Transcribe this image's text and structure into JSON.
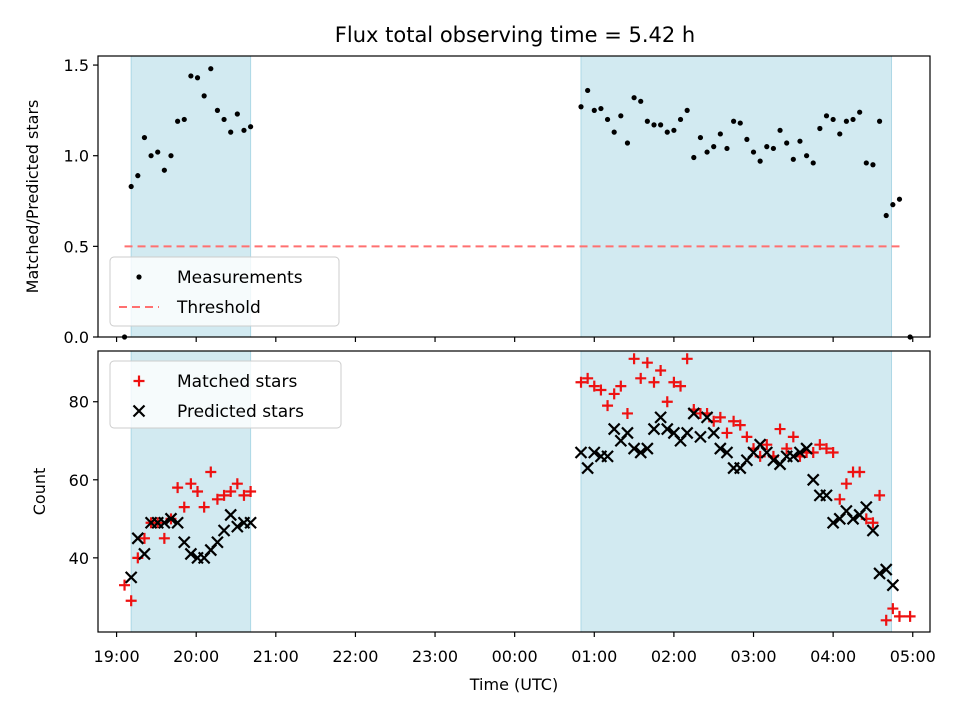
{
  "title": "Flux total observing time = 5.42 h",
  "colors": {
    "shade": "#add8e6",
    "measurement": "#000000",
    "threshold": "#ff7070",
    "matched": "#ee1111",
    "predicted": "#000000"
  },
  "chart_data": [
    {
      "type": "scatter",
      "ylabel": "Matched/Predicted stars",
      "ylim": [
        0,
        1.55
      ],
      "yticks": [
        0.0,
        0.5,
        1.0,
        1.5
      ],
      "ytick_labels": [
        "0.0",
        "0.5",
        "1.0",
        "1.5"
      ],
      "legend": {
        "placement": "lower-left",
        "entries": [
          "Measurements",
          "Threshold"
        ]
      },
      "threshold": {
        "y": 0.5,
        "x_from": "19:06",
        "x_to": "04:50"
      },
      "shaded_spans": [
        [
          "19:11",
          "20:41"
        ],
        [
          "00:50",
          "04:44"
        ]
      ],
      "series": [
        {
          "name": "Measurements",
          "marker": "dot",
          "points": [
            [
              "19:06",
              0.0
            ],
            [
              "19:11",
              0.83
            ],
            [
              "19:16",
              0.89
            ],
            [
              "19:21",
              1.1
            ],
            [
              "19:26",
              1.0
            ],
            [
              "19:31",
              1.02
            ],
            [
              "19:36",
              0.92
            ],
            [
              "19:41",
              1.0
            ],
            [
              "19:46",
              1.19
            ],
            [
              "19:51",
              1.2
            ],
            [
              "19:56",
              1.44
            ],
            [
              "20:01",
              1.43
            ],
            [
              "20:06",
              1.33
            ],
            [
              "20:11",
              1.48
            ],
            [
              "20:16",
              1.25
            ],
            [
              "20:21",
              1.2
            ],
            [
              "20:26",
              1.13
            ],
            [
              "20:31",
              1.23
            ],
            [
              "20:36",
              1.14
            ],
            [
              "20:41",
              1.16
            ],
            [
              "00:50",
              1.27
            ],
            [
              "00:55",
              1.36
            ],
            [
              "01:00",
              1.25
            ],
            [
              "01:05",
              1.26
            ],
            [
              "01:10",
              1.2
            ],
            [
              "01:15",
              1.13
            ],
            [
              "01:20",
              1.22
            ],
            [
              "01:25",
              1.07
            ],
            [
              "01:30",
              1.32
            ],
            [
              "01:35",
              1.3
            ],
            [
              "01:40",
              1.19
            ],
            [
              "01:45",
              1.17
            ],
            [
              "01:50",
              1.17
            ],
            [
              "01:55",
              1.13
            ],
            [
              "02:00",
              1.14
            ],
            [
              "02:05",
              1.2
            ],
            [
              "02:10",
              1.25
            ],
            [
              "02:15",
              0.99
            ],
            [
              "02:20",
              1.1
            ],
            [
              "02:25",
              1.02
            ],
            [
              "02:30",
              1.05
            ],
            [
              "02:35",
              1.12
            ],
            [
              "02:40",
              1.04
            ],
            [
              "02:45",
              1.19
            ],
            [
              "02:50",
              1.18
            ],
            [
              "02:55",
              1.09
            ],
            [
              "03:00",
              1.02
            ],
            [
              "03:05",
              0.97
            ],
            [
              "03:10",
              1.05
            ],
            [
              "03:15",
              1.04
            ],
            [
              "03:20",
              1.14
            ],
            [
              "03:25",
              1.07
            ],
            [
              "03:30",
              0.98
            ],
            [
              "03:35",
              1.08
            ],
            [
              "03:40",
              1.0
            ],
            [
              "03:45",
              0.96
            ],
            [
              "03:50",
              1.15
            ],
            [
              "03:55",
              1.22
            ],
            [
              "04:00",
              1.2
            ],
            [
              "04:05",
              1.12
            ],
            [
              "04:10",
              1.19
            ],
            [
              "04:15",
              1.2
            ],
            [
              "04:20",
              1.24
            ],
            [
              "04:25",
              0.96
            ],
            [
              "04:30",
              0.95
            ],
            [
              "04:35",
              1.19
            ],
            [
              "04:40",
              0.67
            ],
            [
              "04:45",
              0.73
            ],
            [
              "04:50",
              0.76
            ],
            [
              "04:58",
              0.0
            ]
          ]
        },
        {
          "name": "Threshold",
          "marker": "dashed-line"
        }
      ]
    },
    {
      "type": "scatter",
      "xlabel": "Time (UTC)",
      "ylabel": "Count",
      "ylim": [
        21,
        93
      ],
      "yticks": [
        40,
        60,
        80
      ],
      "ytick_labels": [
        "40",
        "60",
        "80"
      ],
      "legend": {
        "placement": "top-left",
        "entries": [
          "Matched stars",
          "Predicted stars"
        ]
      },
      "shaded_spans": [
        [
          "19:11",
          "20:41"
        ],
        [
          "00:50",
          "04:44"
        ]
      ],
      "x_axis": {
        "ticks": [
          "19:00",
          "20:00",
          "21:00",
          "22:00",
          "23:00",
          "00:00",
          "01:00",
          "02:00",
          "03:00",
          "04:00",
          "05:00"
        ],
        "range": [
          "18:46",
          "05:13"
        ]
      },
      "series": [
        {
          "name": "Matched stars",
          "marker": "plus",
          "points": [
            [
              "19:06",
              33
            ],
            [
              "19:11",
              29
            ],
            [
              "19:16",
              40
            ],
            [
              "19:21",
              45
            ],
            [
              "19:26",
              49
            ],
            [
              "19:31",
              49
            ],
            [
              "19:36",
              45
            ],
            [
              "19:41",
              50
            ],
            [
              "19:46",
              58
            ],
            [
              "19:51",
              53
            ],
            [
              "19:56",
              59
            ],
            [
              "20:01",
              57
            ],
            [
              "20:06",
              53
            ],
            [
              "20:11",
              62
            ],
            [
              "20:16",
              55
            ],
            [
              "20:21",
              56
            ],
            [
              "20:26",
              57
            ],
            [
              "20:31",
              59
            ],
            [
              "20:36",
              56
            ],
            [
              "20:41",
              57
            ],
            [
              "00:50",
              85
            ],
            [
              "00:55",
              86
            ],
            [
              "01:00",
              84
            ],
            [
              "01:05",
              83
            ],
            [
              "01:10",
              79
            ],
            [
              "01:15",
              82
            ],
            [
              "01:20",
              84
            ],
            [
              "01:25",
              77
            ],
            [
              "01:30",
              91
            ],
            [
              "01:35",
              86
            ],
            [
              "01:40",
              90
            ],
            [
              "01:45",
              85
            ],
            [
              "01:50",
              88
            ],
            [
              "01:55",
              80
            ],
            [
              "02:00",
              85
            ],
            [
              "02:05",
              84
            ],
            [
              "02:10",
              91
            ],
            [
              "02:15",
              78
            ],
            [
              "02:20",
              77
            ],
            [
              "02:25",
              77
            ],
            [
              "02:30",
              75
            ],
            [
              "02:35",
              76
            ],
            [
              "02:40",
              72
            ],
            [
              "02:45",
              75
            ],
            [
              "02:50",
              74
            ],
            [
              "02:55",
              71
            ],
            [
              "03:00",
              68
            ],
            [
              "03:05",
              66
            ],
            [
              "03:10",
              69
            ],
            [
              "03:15",
              66
            ],
            [
              "03:20",
              73
            ],
            [
              "03:25",
              68
            ],
            [
              "03:30",
              71
            ],
            [
              "03:35",
              66
            ],
            [
              "03:40",
              67
            ],
            [
              "03:45",
              67
            ],
            [
              "03:50",
              69
            ],
            [
              "03:55",
              68
            ],
            [
              "04:00",
              67
            ],
            [
              "04:05",
              55
            ],
            [
              "04:10",
              59
            ],
            [
              "04:15",
              62
            ],
            [
              "04:20",
              62
            ],
            [
              "04:25",
              50
            ],
            [
              "04:30",
              49
            ],
            [
              "04:35",
              56
            ],
            [
              "04:40",
              24
            ],
            [
              "04:45",
              27
            ],
            [
              "04:50",
              25
            ],
            [
              "04:58",
              25
            ]
          ]
        },
        {
          "name": "Predicted stars",
          "marker": "x",
          "points": [
            [
              "19:11",
              35
            ],
            [
              "19:16",
              45
            ],
            [
              "19:21",
              41
            ],
            [
              "19:26",
              49
            ],
            [
              "19:31",
              49
            ],
            [
              "19:36",
              49
            ],
            [
              "19:41",
              50
            ],
            [
              "19:46",
              49
            ],
            [
              "19:51",
              44
            ],
            [
              "19:56",
              41
            ],
            [
              "20:01",
              40
            ],
            [
              "20:06",
              40
            ],
            [
              "20:11",
              42
            ],
            [
              "20:16",
              44
            ],
            [
              "20:21",
              47
            ],
            [
              "20:26",
              51
            ],
            [
              "20:31",
              48
            ],
            [
              "20:36",
              49
            ],
            [
              "20:41",
              49
            ],
            [
              "00:50",
              67
            ],
            [
              "00:55",
              63
            ],
            [
              "01:00",
              67
            ],
            [
              "01:05",
              66
            ],
            [
              "01:10",
              66
            ],
            [
              "01:15",
              73
            ],
            [
              "01:20",
              70
            ],
            [
              "01:25",
              72
            ],
            [
              "01:30",
              68
            ],
            [
              "01:35",
              67
            ],
            [
              "01:40",
              68
            ],
            [
              "01:45",
              73
            ],
            [
              "01:50",
              76
            ],
            [
              "01:55",
              73
            ],
            [
              "02:00",
              72
            ],
            [
              "02:05",
              70
            ],
            [
              "02:10",
              72
            ],
            [
              "02:15",
              77
            ],
            [
              "02:20",
              71
            ],
            [
              "02:25",
              76
            ],
            [
              "02:30",
              72
            ],
            [
              "02:35",
              68
            ],
            [
              "02:40",
              67
            ],
            [
              "02:45",
              63
            ],
            [
              "02:50",
              63
            ],
            [
              "02:55",
              65
            ],
            [
              "03:00",
              67
            ],
            [
              "03:05",
              69
            ],
            [
              "03:10",
              67
            ],
            [
              "03:15",
              65
            ],
            [
              "03:20",
              64
            ],
            [
              "03:25",
              66
            ],
            [
              "03:30",
              66
            ],
            [
              "03:35",
              67
            ],
            [
              "03:40",
              68
            ],
            [
              "03:45",
              60
            ],
            [
              "03:50",
              56
            ],
            [
              "03:55",
              56
            ],
            [
              "04:00",
              49
            ],
            [
              "04:05",
              50
            ],
            [
              "04:10",
              52
            ],
            [
              "04:15",
              50
            ],
            [
              "04:20",
              51
            ],
            [
              "04:25",
              53
            ],
            [
              "04:30",
              47
            ],
            [
              "04:35",
              36
            ],
            [
              "04:40",
              37
            ],
            [
              "04:45",
              33
            ]
          ]
        }
      ]
    }
  ]
}
